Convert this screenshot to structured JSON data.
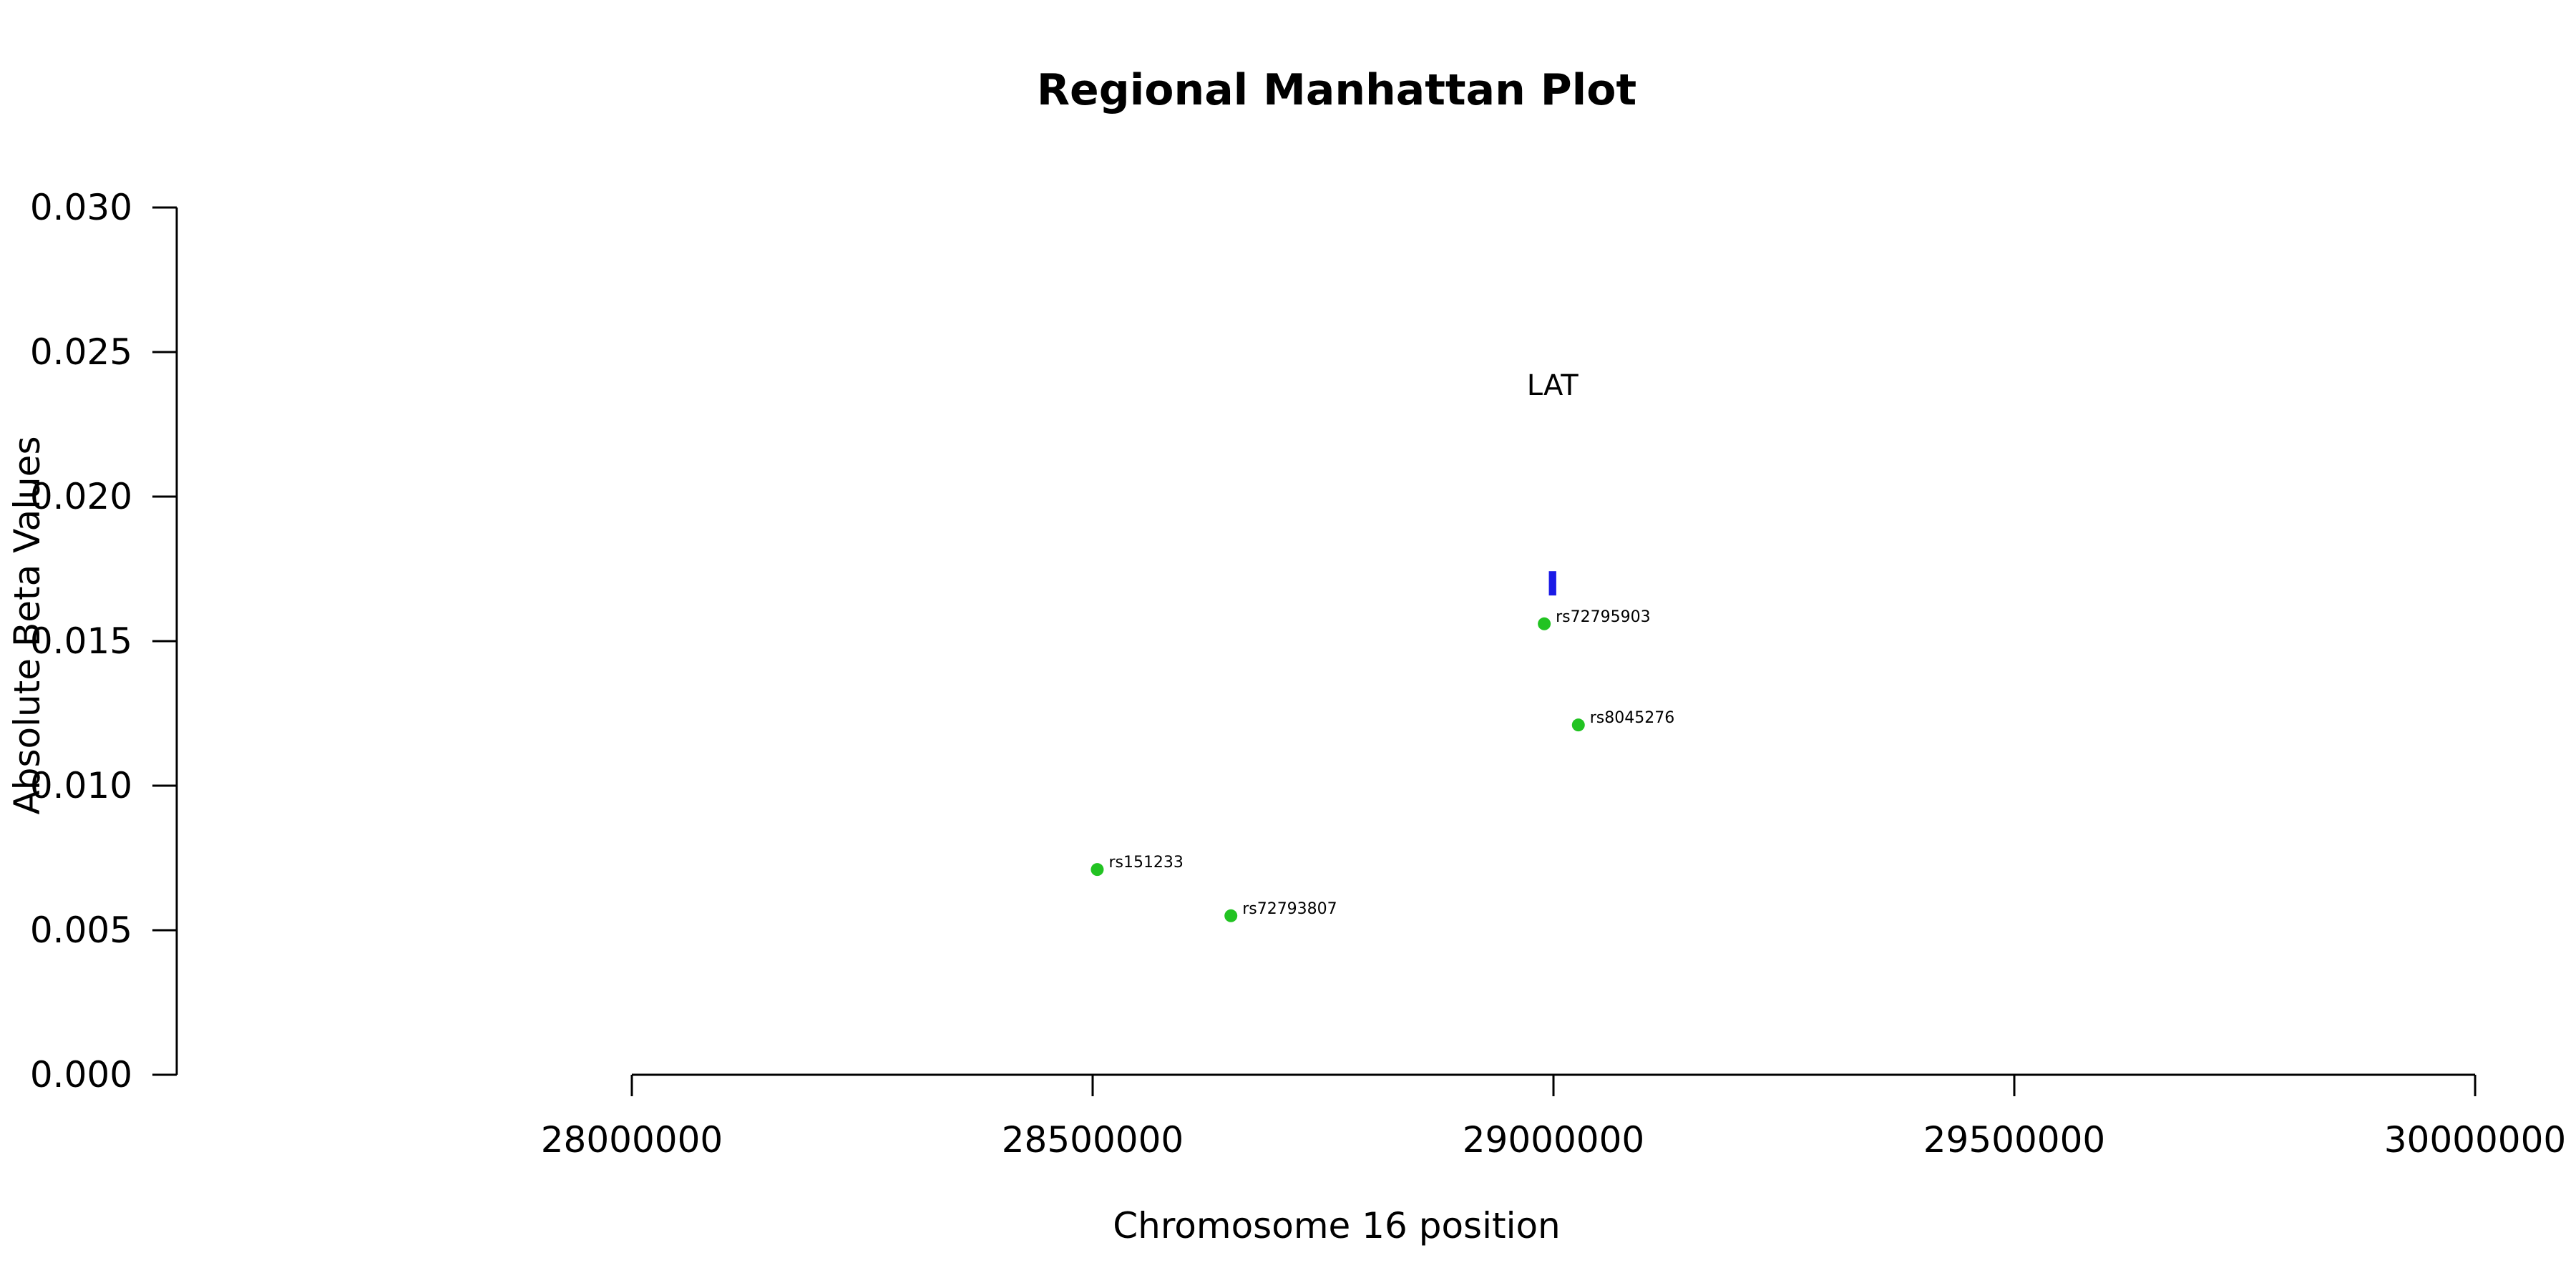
{
  "chart_data": {
    "type": "scatter",
    "title": "Regional Manhattan Plot",
    "xlabel": "Chromosome 16 position",
    "ylabel": "Absolute Beta Values",
    "xlim": [
      28000000,
      30000000
    ],
    "ylim": [
      0,
      0.03
    ],
    "x_ticks": [
      "28000000",
      "28500000",
      "29000000",
      "29500000",
      "30000000"
    ],
    "y_ticks": [
      "0.000",
      "0.005",
      "0.010",
      "0.015",
      "0.020",
      "0.025",
      "0.030"
    ],
    "grid": false,
    "colors": {
      "snp": "#22c322",
      "gene": "#1a1ae6"
    },
    "points": [
      {
        "label": "rs151233",
        "x": 28505000,
        "y": 0.0071
      },
      {
        "label": "rs72793807",
        "x": 28650000,
        "y": 0.0055
      },
      {
        "label": "rs72795903",
        "x": 28990000,
        "y": 0.0156
      },
      {
        "label": "rs8045276",
        "x": 29027000,
        "y": 0.0121
      }
    ],
    "genes": [
      {
        "name": "LAT",
        "start": 28995000,
        "end": 29003000,
        "y": 0.017
      }
    ]
  }
}
